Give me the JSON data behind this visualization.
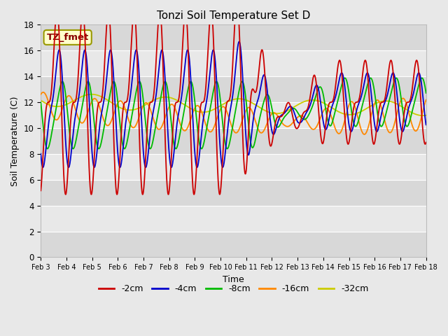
{
  "title": "Tonzi Soil Temperature Set D",
  "xlabel": "Time",
  "ylabel": "Soil Temperature (C)",
  "annotation": "TZ_fmet",
  "ylim": [
    0,
    18
  ],
  "series_colors": {
    "-2cm": "#cc0000",
    "-4cm": "#0000cc",
    "-8cm": "#00bb00",
    "-16cm": "#ff8800",
    "-32cm": "#cccc00"
  },
  "legend_colors": [
    "#cc0000",
    "#0000cc",
    "#00bb00",
    "#ff8800",
    "#cccc00"
  ],
  "legend_labels": [
    "-2cm",
    "-4cm",
    "-8cm",
    "-16cm",
    "-32cm"
  ],
  "x_tick_labels": [
    "Feb 3",
    "Feb 4",
    "Feb 5",
    "Feb 6",
    "Feb 7",
    "Feb 8",
    "Feb 9",
    "Feb 10",
    "Feb 11",
    "Feb 12",
    "Feb 13",
    "Feb 14",
    "Feb 15",
    "Feb 16",
    "Feb 17",
    "Feb 18"
  ],
  "background_color": "#e8e8e8",
  "plot_bg_color": "#f0f0f0",
  "grid_color": "#d0d0d0",
  "annotation_bg": "#ffffcc",
  "annotation_border": "#999900"
}
